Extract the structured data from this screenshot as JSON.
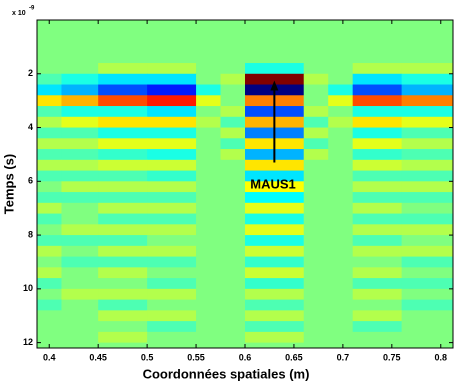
{
  "chart_data": {
    "type": "heatmap",
    "xlabel": "Coordonnées spatiales (m)",
    "ylabel": "Temps (s)",
    "y_exponent_base": "x 10",
    "y_exponent": "-9",
    "colormap": "jet",
    "zlim": [
      -1,
      1
    ],
    "y_reversed": true,
    "xlim": [
      0.3875,
      0.8125
    ],
    "ylim": [
      0,
      12.2
    ],
    "xticks": [
      0.4,
      0.45,
      0.5,
      0.55,
      0.6,
      0.65,
      0.7,
      0.75,
      0.8
    ],
    "yticks": [
      2,
      4,
      6,
      8,
      10,
      12
    ],
    "x_edges": [
      0.3875,
      0.4125,
      0.45,
      0.5,
      0.55,
      0.575,
      0.6,
      0.66,
      0.685,
      0.71,
      0.76,
      0.8125
    ],
    "y_edges": [
      0,
      1.6,
      2.0,
      2.4,
      2.8,
      3.2,
      3.6,
      4.0,
      4.4,
      4.8,
      5.2,
      5.6,
      6.0,
      6.4,
      6.8,
      7.2,
      7.6,
      8.0,
      8.4,
      8.8,
      9.2,
      9.6,
      10.0,
      10.4,
      10.8,
      11.2,
      11.6,
      12.0,
      12.2
    ],
    "z": [
      [
        0,
        0,
        0,
        0,
        0,
        0,
        0,
        0,
        0,
        0,
        0
      ],
      [
        0,
        0,
        0.1,
        0.1,
        0,
        0,
        -0.2,
        0,
        0,
        0.1,
        0.1
      ],
      [
        -0.1,
        -0.2,
        -0.3,
        -0.3,
        0,
        0.1,
        1,
        0.1,
        0,
        -0.3,
        -0.2
      ],
      [
        -0.3,
        -0.4,
        -0.6,
        -0.7,
        -0.2,
        0,
        -1,
        0,
        -0.2,
        -0.6,
        -0.4
      ],
      [
        0.3,
        0.4,
        0.6,
        0.7,
        0.2,
        0,
        0.5,
        0,
        0.2,
        0.6,
        0.5
      ],
      [
        -0.1,
        -0.2,
        -0.2,
        -0.3,
        0,
        0.1,
        -0.6,
        0.1,
        0,
        -0.2,
        -0.2
      ],
      [
        0.1,
        0.2,
        0.3,
        0.3,
        0.1,
        -0.1,
        0.4,
        -0.1,
        0.1,
        0.3,
        0.2
      ],
      [
        -0.1,
        -0.1,
        -0.2,
        -0.2,
        0,
        0.1,
        -0.5,
        0.1,
        0,
        -0.2,
        -0.1
      ],
      [
        0.1,
        0.1,
        0.2,
        0.2,
        0,
        -0.1,
        0.3,
        -0.1,
        0,
        0.2,
        0.1
      ],
      [
        -0.1,
        -0.1,
        -0.15,
        -0.2,
        0,
        0.1,
        -0.4,
        0.1,
        0,
        -0.15,
        -0.1
      ],
      [
        0.1,
        0.1,
        0.15,
        0.15,
        0,
        0,
        0.3,
        0,
        0,
        0.15,
        0.1
      ],
      [
        -0.1,
        -0.1,
        -0.1,
        -0.15,
        0,
        0,
        -0.3,
        0,
        0,
        -0.1,
        -0.1
      ],
      [
        0,
        0.1,
        0.1,
        0.1,
        0,
        0,
        0.25,
        0,
        0,
        0.1,
        0.1
      ],
      [
        -0.1,
        -0.1,
        -0.1,
        -0.1,
        0,
        0,
        -0.25,
        0,
        0,
        -0.1,
        -0.1
      ],
      [
        0.1,
        0,
        0.1,
        0.1,
        0,
        0,
        0.2,
        0,
        0,
        0.1,
        0
      ],
      [
        -0.1,
        0,
        -0.1,
        -0.1,
        0,
        0,
        -0.2,
        0,
        0,
        -0.1,
        -0.1
      ],
      [
        0,
        0.1,
        0.1,
        0.1,
        0,
        0,
        0.2,
        0,
        0,
        0.1,
        0.1
      ],
      [
        -0.1,
        -0.1,
        -0.1,
        0,
        0,
        0,
        -0.2,
        0,
        0,
        -0.1,
        0
      ],
      [
        0.1,
        0,
        0.1,
        0.1,
        0,
        0,
        0.15,
        0,
        0,
        0.1,
        0.1
      ],
      [
        0,
        -0.1,
        -0.1,
        -0.1,
        0,
        0,
        -0.15,
        0,
        0,
        0,
        -0.1
      ],
      [
        0.1,
        0,
        0.1,
        0,
        0,
        0,
        0.15,
        0,
        0,
        0.1,
        0
      ],
      [
        -0.1,
        0,
        0,
        -0.1,
        0,
        0,
        -0.15,
        0,
        0,
        -0.1,
        -0.1
      ],
      [
        0,
        0.1,
        0.1,
        0.1,
        0,
        0,
        0.1,
        0,
        0,
        0.1,
        0
      ],
      [
        -0.1,
        0,
        -0.1,
        0,
        0,
        0,
        -0.1,
        0,
        0,
        0,
        -0.1
      ],
      [
        0,
        0,
        0.1,
        0.1,
        0,
        0,
        0.1,
        0,
        0,
        0.1,
        0
      ],
      [
        0,
        0,
        0,
        -0.1,
        0,
        0,
        -0.1,
        0,
        0,
        -0.1,
        0
      ],
      [
        0,
        0,
        0.1,
        0,
        0,
        0,
        0.1,
        0,
        0,
        0,
        0
      ],
      [
        0,
        0,
        0,
        0,
        0,
        0,
        0,
        0,
        0,
        0,
        0
      ]
    ],
    "annotation": {
      "text": "MAUS1",
      "x": 0.6286,
      "y": 6.14,
      "arrow_x": 0.63,
      "arrow_from": 5.3,
      "arrow_to": 2.25
    }
  }
}
